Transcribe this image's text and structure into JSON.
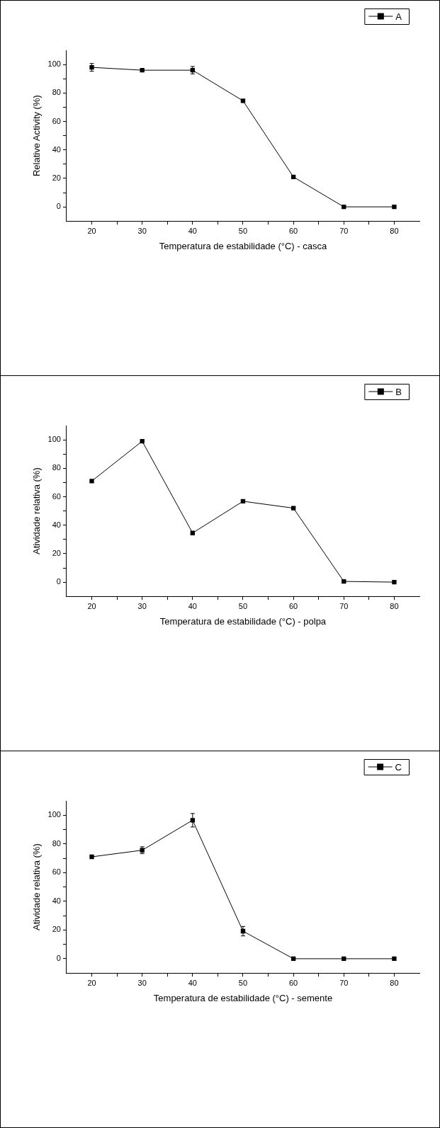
{
  "chart_data": [
    {
      "type": "line",
      "xlabel": "Temperatura de estabilidade (°C) - casca",
      "ylabel": "Relative Activity (%)",
      "x": [
        20,
        30,
        40,
        50,
        60,
        70,
        80
      ],
      "xlim": [
        15,
        85
      ],
      "xticks": [
        20,
        {
          "value": 25,
          "label": null
        },
        30,
        {
          "value": 35,
          "label": null
        },
        40,
        {
          "value": 45,
          "label": null
        },
        50,
        {
          "value": 55,
          "label": null
        },
        60,
        {
          "value": 65,
          "label": null
        },
        70,
        {
          "value": 75,
          "label": null
        },
        80
      ],
      "ylim": [
        -10,
        110
      ],
      "yticks": [
        0,
        {
          "value": 10,
          "label": null
        },
        20,
        {
          "value": 30,
          "label": null
        },
        40,
        {
          "value": 50,
          "label": null
        },
        60,
        {
          "value": 70,
          "label": null
        },
        80,
        {
          "value": 90,
          "label": null
        },
        100
      ],
      "marker": "square",
      "legend": "top right",
      "series": [
        {
          "name": "A",
          "color": "#000000",
          "values": [
            98,
            96,
            96,
            74.5,
            21,
            0,
            0
          ],
          "errors": [
            2.7,
            null,
            2.6,
            null,
            null,
            null,
            null
          ]
        }
      ]
    },
    {
      "type": "line",
      "xlabel": "Temperatura de estabilidade (°C) - polpa",
      "ylabel": "Atividade relativa (%)",
      "x": [
        20,
        30,
        40,
        50,
        60,
        70,
        80
      ],
      "xlim": [
        15,
        85
      ],
      "xticks": [
        20,
        {
          "value": 25,
          "label": null
        },
        30,
        {
          "value": 35,
          "label": null
        },
        40,
        {
          "value": 45,
          "label": null
        },
        50,
        {
          "value": 55,
          "label": null
        },
        60,
        {
          "value": 65,
          "label": null
        },
        70,
        {
          "value": 75,
          "label": null
        },
        80
      ],
      "ylim": [
        -10,
        110
      ],
      "yticks": [
        0,
        {
          "value": 10,
          "label": null
        },
        20,
        {
          "value": 30,
          "label": null
        },
        40,
        {
          "value": 50,
          "label": null
        },
        60,
        {
          "value": 70,
          "label": null
        },
        80,
        {
          "value": 90,
          "label": null
        },
        100
      ],
      "marker": "square",
      "legend": "top right",
      "series": [
        {
          "name": "B",
          "color": "#000000",
          "values": [
            71,
            99,
            34.5,
            56.8,
            52,
            0.5,
            0
          ]
        }
      ]
    },
    {
      "type": "line",
      "xlabel": "Temperatura de estabilidade (°C) - semente",
      "ylabel": "Atividade relativa (%)",
      "x": [
        20,
        30,
        40,
        50,
        60,
        70,
        80
      ],
      "xlim": [
        15,
        85
      ],
      "xticks": [
        20,
        {
          "value": 25,
          "label": null
        },
        30,
        {
          "value": 35,
          "label": null
        },
        40,
        {
          "value": 45,
          "label": null
        },
        50,
        {
          "value": 55,
          "label": null
        },
        60,
        {
          "value": 65,
          "label": null
        },
        70,
        {
          "value": 75,
          "label": null
        },
        80
      ],
      "ylim": [
        -10,
        110
      ],
      "yticks": [
        0,
        {
          "value": 10,
          "label": null
        },
        20,
        {
          "value": 30,
          "label": null
        },
        40,
        {
          "value": 50,
          "label": null
        },
        60,
        {
          "value": 70,
          "label": null
        },
        80,
        {
          "value": 90,
          "label": null
        },
        100
      ],
      "marker": "square",
      "legend": "top right",
      "series": [
        {
          "name": "C",
          "color": "#000000",
          "values": [
            71,
            75.6,
            96.5,
            19.2,
            0,
            0,
            0
          ],
          "errors": [
            null,
            2.4,
            4.7,
            3.3,
            null,
            null,
            null
          ]
        }
      ]
    }
  ]
}
